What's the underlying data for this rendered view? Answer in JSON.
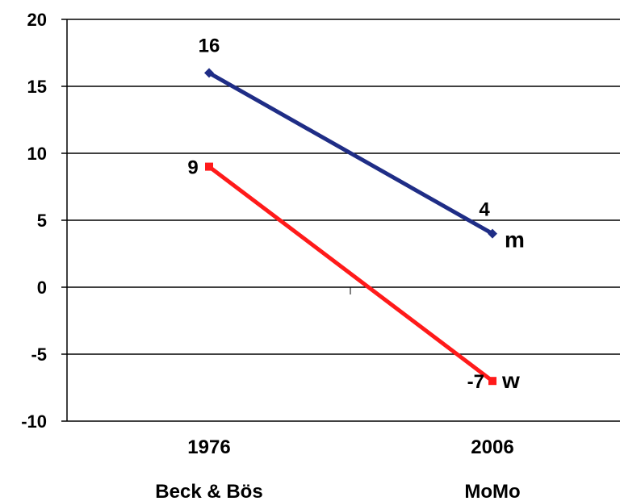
{
  "chart_data": {
    "type": "line",
    "categories": [
      "1976",
      "2006"
    ],
    "category_sublabels": [
      "Beck & Bös",
      "MoMo"
    ],
    "ylim": [
      -10,
      20
    ],
    "yticks": [
      20,
      15,
      10,
      5,
      0,
      -5,
      -10
    ],
    "ytick_labels": [
      "20",
      "15",
      "10",
      "5",
      "0",
      "-5",
      "-10"
    ],
    "grid": true,
    "legend": "none",
    "series": [
      {
        "name": "m",
        "values": [
          16,
          4
        ],
        "labels": [
          "16",
          "4"
        ],
        "color": "#1f2d86",
        "marker": "diamond"
      },
      {
        "name": "w",
        "values": [
          9,
          -7
        ],
        "labels": [
          "9",
          "-7"
        ],
        "color": "#ff1a1a",
        "marker": "square"
      }
    ]
  }
}
